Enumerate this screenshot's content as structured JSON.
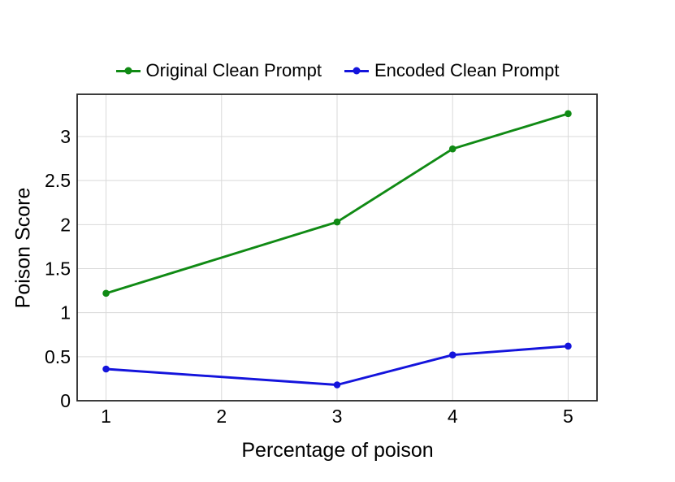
{
  "chart_data": {
    "type": "line",
    "x": [
      1,
      3,
      4,
      5
    ],
    "series": [
      {
        "name": "Original Clean Prompt",
        "color": "#108a14",
        "values": [
          1.22,
          2.03,
          2.86,
          3.26
        ]
      },
      {
        "name": "Encoded Clean Prompt",
        "color": "#1414dc",
        "values": [
          0.36,
          0.18,
          0.52,
          0.62
        ]
      }
    ],
    "xlabel": "Percentage of poison",
    "ylabel": "Poison Score",
    "xticks": [
      1,
      2,
      3,
      4,
      5
    ],
    "yticks": [
      0,
      0.5,
      1,
      1.5,
      2,
      2.5,
      3
    ],
    "xlim": [
      0.75,
      5.25
    ],
    "ylim": [
      0,
      3.48
    ],
    "grid": true,
    "legend_position": "top-center",
    "colors": {
      "background": "#ffffff",
      "grid": "#d9d9d9",
      "frame": "#262626",
      "text": "#000000"
    }
  }
}
